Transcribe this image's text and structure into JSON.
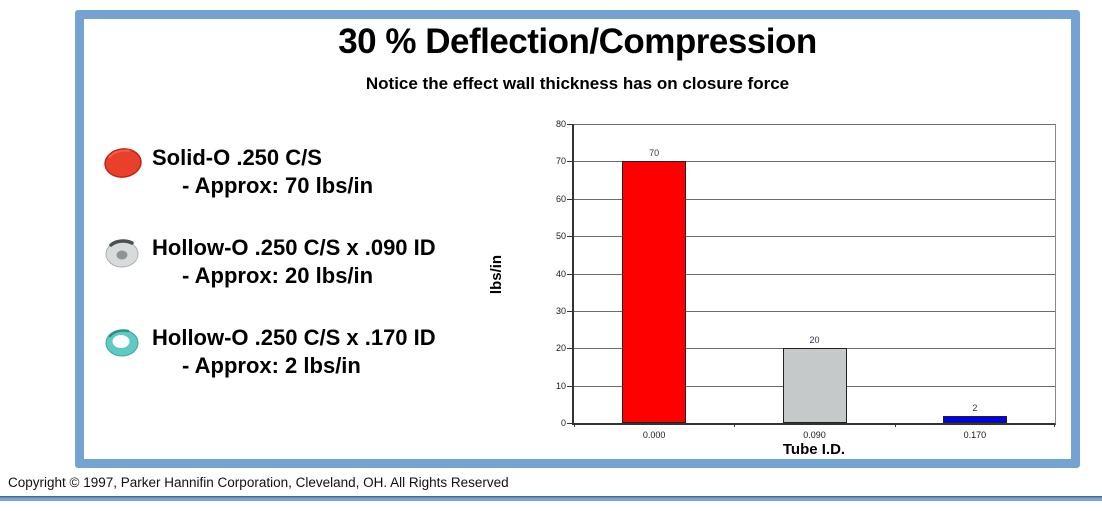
{
  "slide": {
    "title": "30 % Deflection/Compression",
    "subtitle": "Notice the effect wall thickness has on closure force",
    "legend_items": [
      {
        "icon": "solid-o-ring-red",
        "line1": "Solid-O .250 C/S",
        "line2": "- Approx: 70 lbs/in"
      },
      {
        "icon": "hollow-o-ring-silver",
        "line1": "Hollow-O .250 C/S x .090 ID",
        "line2": "- Approx: 20 lbs/in"
      },
      {
        "icon": "hollow-o-ring-teal",
        "line1": "Hollow-O .250 C/S x .170 ID",
        "line2": "- Approx: 2 lbs/in"
      }
    ]
  },
  "footer": {
    "copyright": "Copyright © 1997, Parker Hannifin Corporation, Cleveland, OH. All Rights Reserved"
  },
  "colors": {
    "frame_blue": "#74a3d1",
    "rule_blue": "#5b87b5",
    "bar_red": "#fe0000",
    "bar_silver": "#c6c9c9",
    "bar_blue": "#0000ee",
    "icon_red": "#e8402a",
    "icon_silver": "#d8dbdc",
    "icon_teal": "#5ecac3"
  },
  "chart_data": {
    "type": "bar",
    "categories": [
      "0.000",
      "0.090",
      "0.170"
    ],
    "values": [
      70,
      20,
      2
    ],
    "value_labels": [
      "70",
      "20",
      "2"
    ],
    "bar_colors": [
      "#fe0000",
      "#c6c9c9",
      "#0000ee"
    ],
    "title": "",
    "xlabel": "Tube I.D.",
    "ylabel": "lbs/in",
    "ylim": [
      0,
      80
    ],
    "ytick_step": 10,
    "grid": true,
    "legend": "none"
  }
}
